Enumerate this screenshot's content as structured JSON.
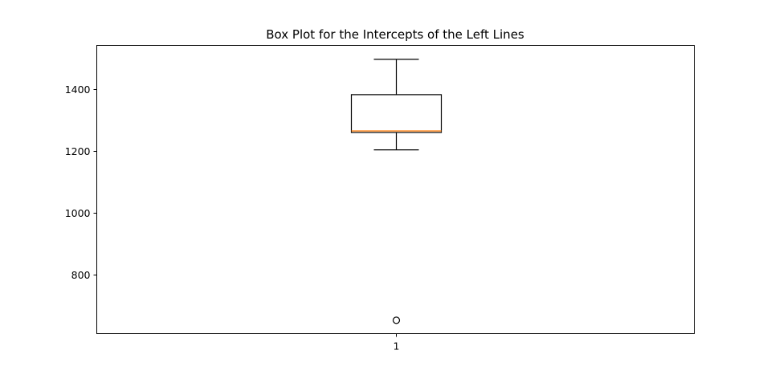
{
  "chart_data": {
    "type": "box",
    "title": "Box Plot for the Intercepts of the Left Lines",
    "xlabel": "",
    "ylabel": "",
    "categories": [
      "1"
    ],
    "ylim": [
      610,
      1540
    ],
    "yticks": [
      800,
      1000,
      1200,
      1400
    ],
    "ytick_labels": [
      "800",
      "1000",
      "1200",
      "1400"
    ],
    "grid": false,
    "boxes": [
      {
        "category": "1",
        "whisker_low": 1203,
        "q1": 1259,
        "median": 1264,
        "q3": 1381,
        "whisker_high": 1495,
        "outliers": [
          653
        ]
      }
    ],
    "colors": {
      "box": "#000000",
      "median": "#ff7f0e",
      "outlier": "#000000"
    }
  }
}
